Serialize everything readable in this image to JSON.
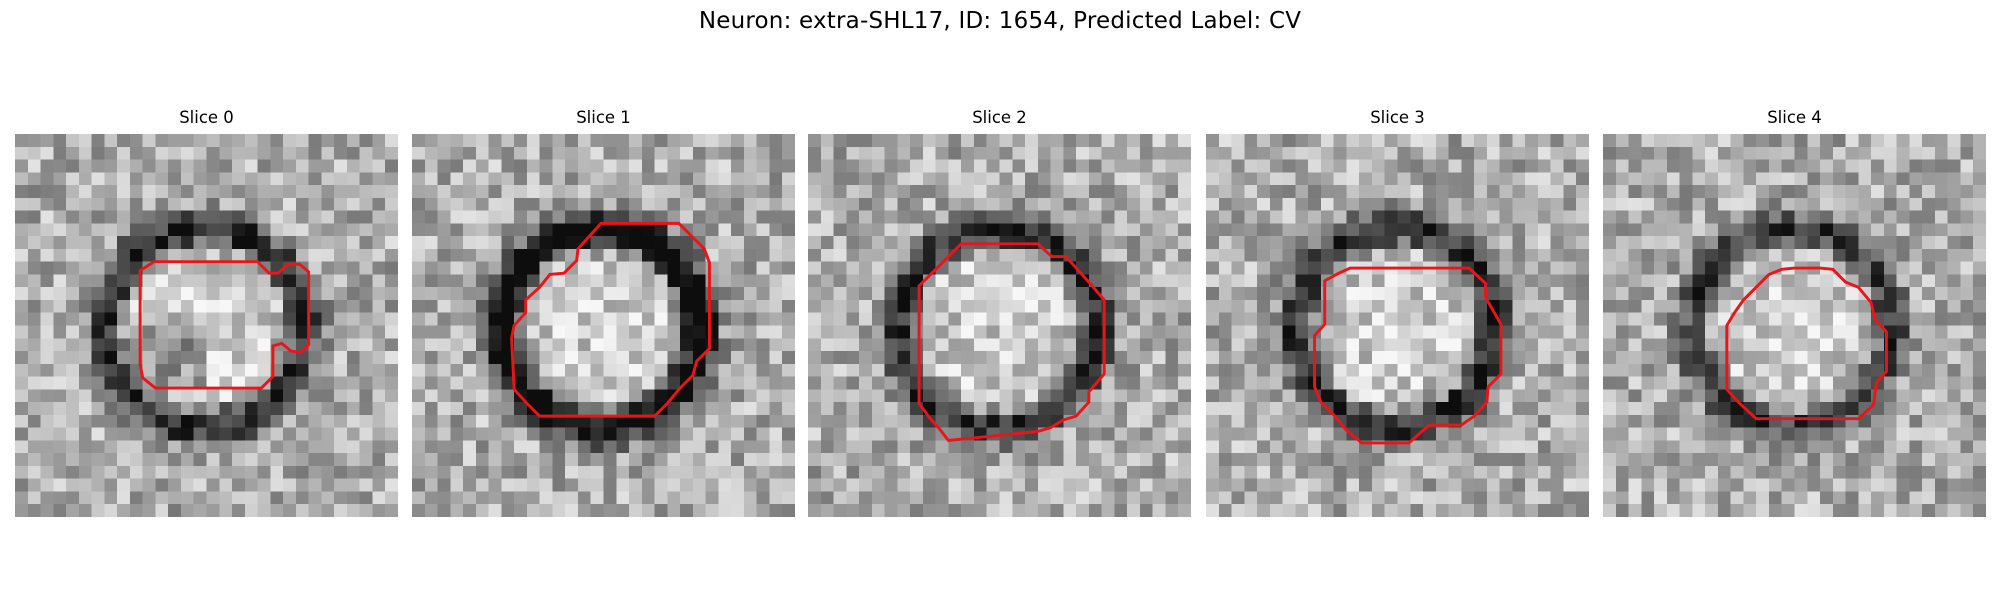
{
  "figure": {
    "title": "Neuron: extra-SHL17, ID: 1654, Predicted Label: CV",
    "contour_color": "#e8161b",
    "panels": [
      {
        "title": "Slice 0",
        "seed": 11,
        "dark_ring": 0.55,
        "blob": 0.2
      },
      {
        "title": "Slice 1",
        "seed": 23,
        "dark_ring": 0.75,
        "blob": 0.0
      },
      {
        "title": "Slice 2",
        "seed": 37,
        "dark_ring": 0.55,
        "blob": 0.0
      },
      {
        "title": "Slice 3",
        "seed": 41,
        "dark_ring": 0.55,
        "blob": 0.0
      },
      {
        "title": "Slice 4",
        "seed": 59,
        "dark_ring": 0.45,
        "blob": 0.0
      }
    ]
  }
}
